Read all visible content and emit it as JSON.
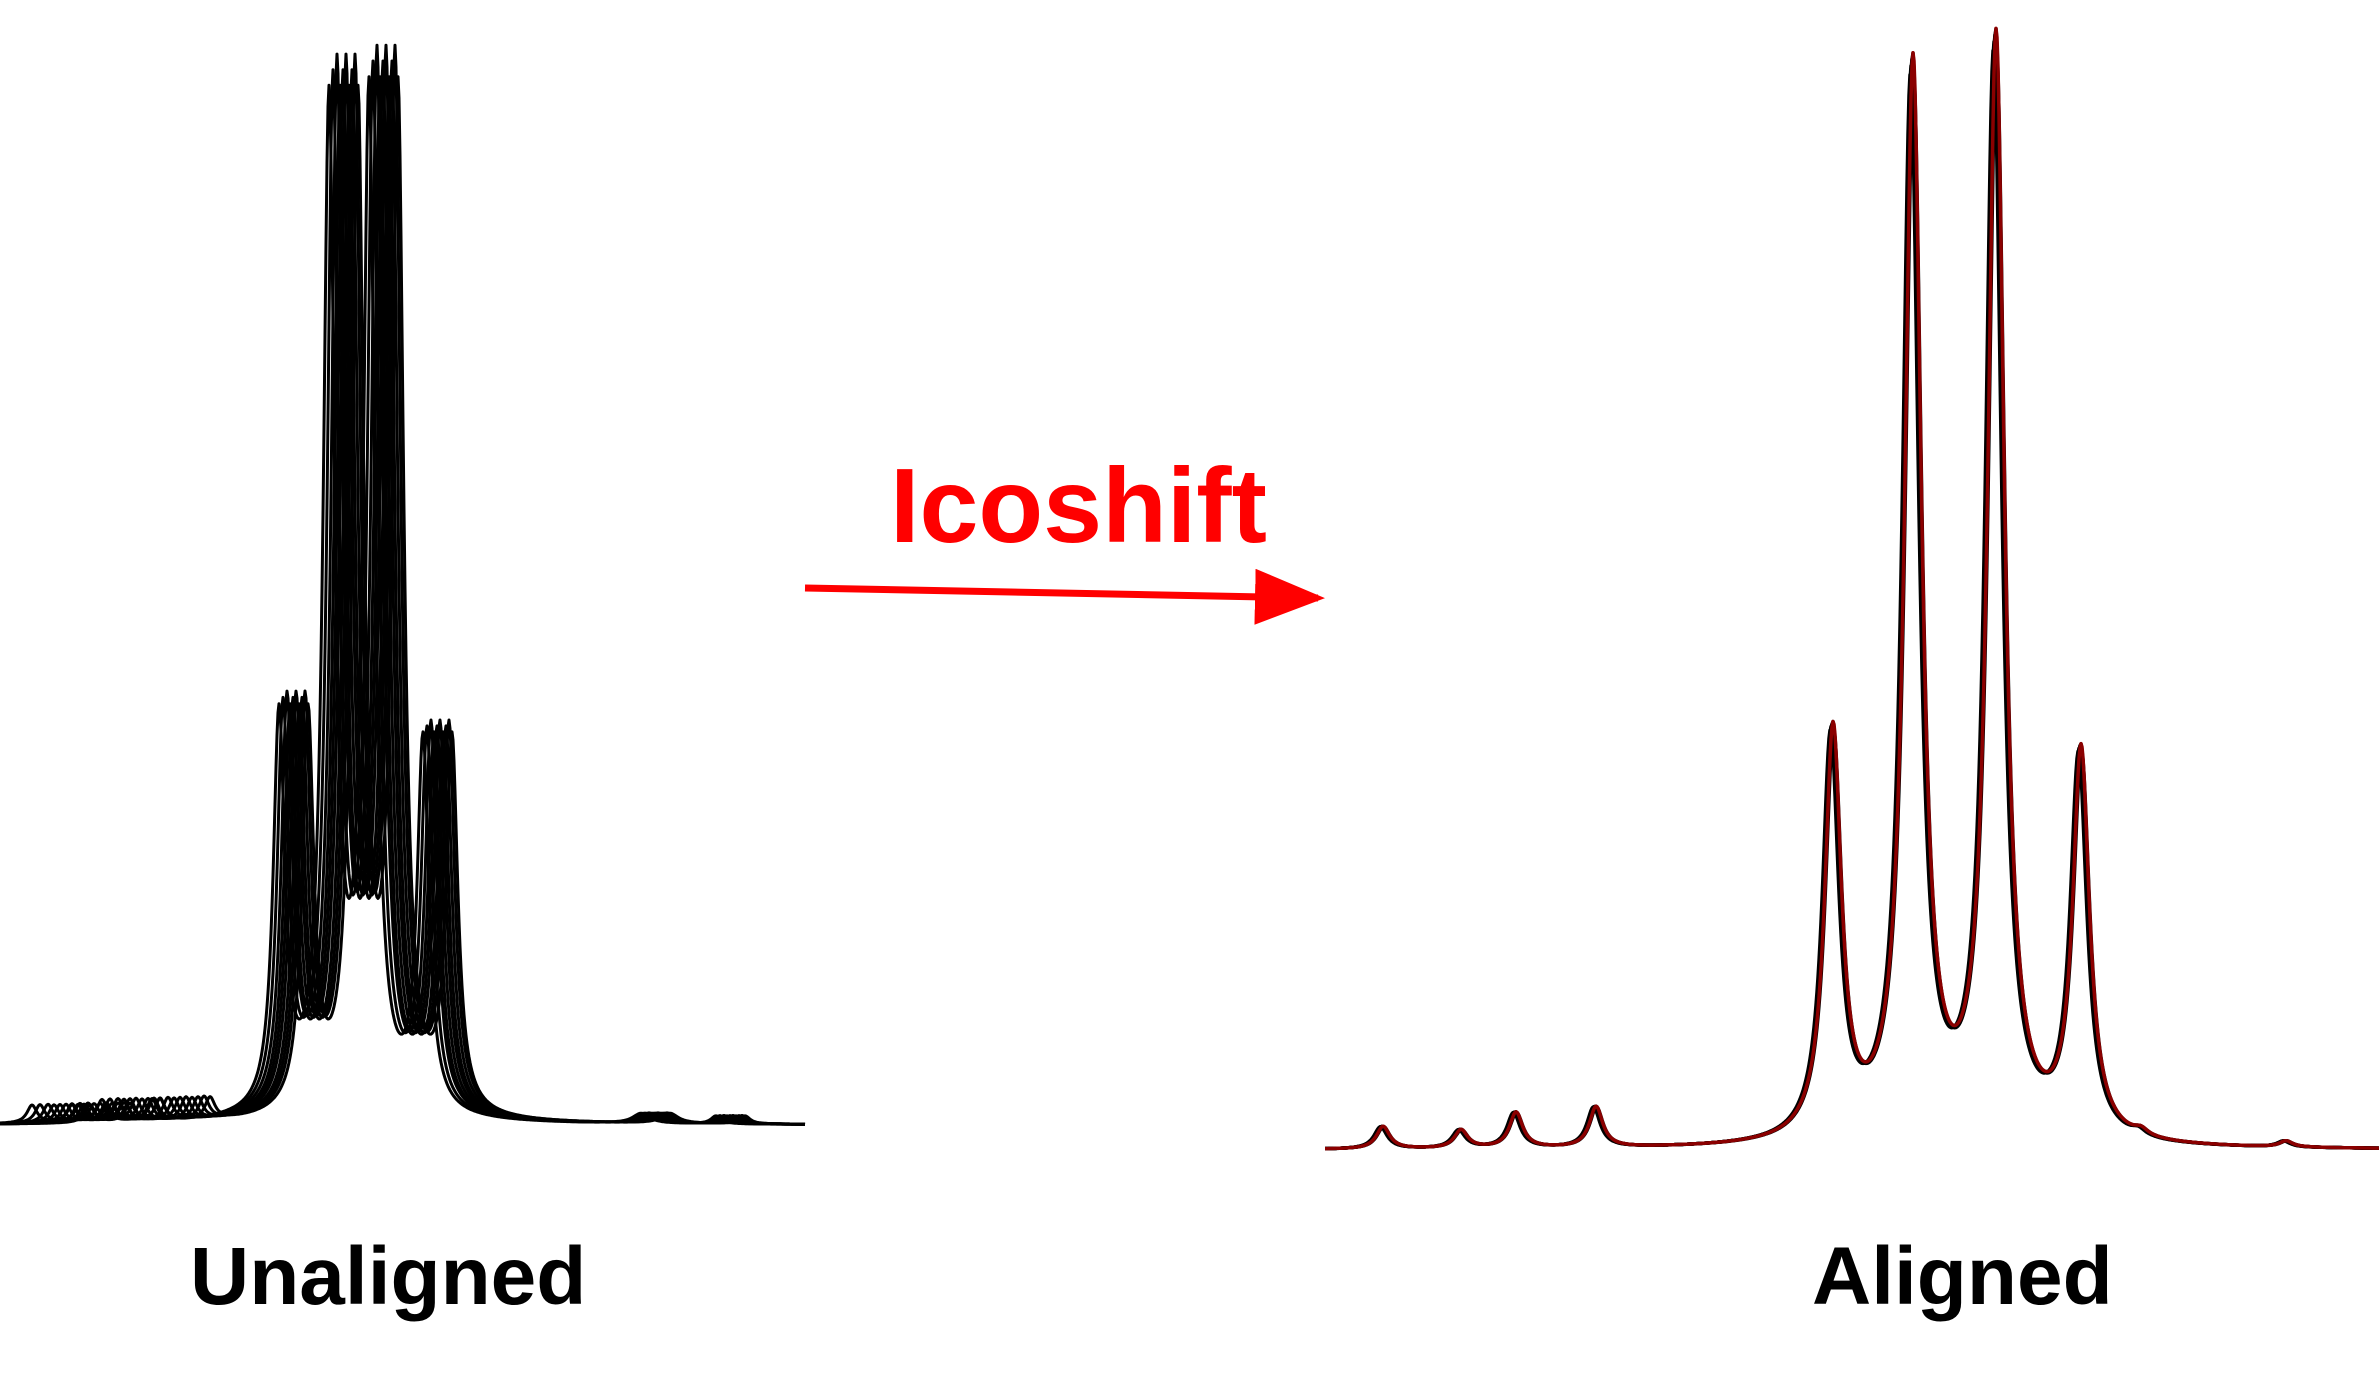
{
  "method": {
    "label": "Icoshift",
    "color": "#ff0000"
  },
  "panels": {
    "unaligned": {
      "label": "Unaligned",
      "description": "overlaid spectra with shifted peaks"
    },
    "aligned": {
      "label": "Aligned",
      "description": "overlaid spectra with coinciding peaks"
    }
  },
  "colors": {
    "trace": "#000000",
    "trace_accent": "#8b0000",
    "background": "#ffffff"
  }
}
